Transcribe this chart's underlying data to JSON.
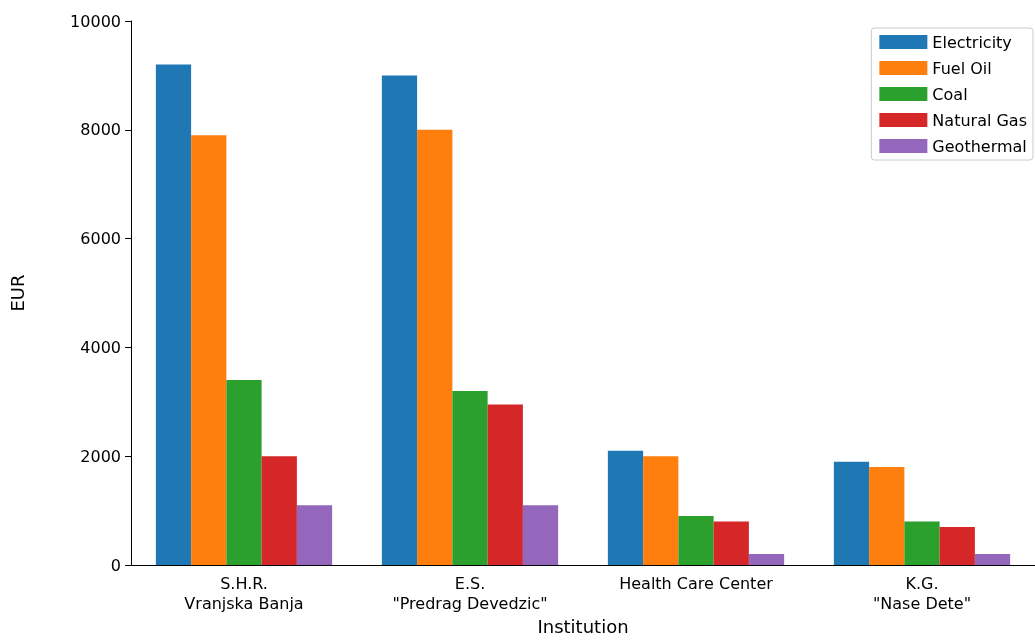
{
  "chart_data": {
    "type": "bar",
    "xlabel": "Institution",
    "ylabel": "EUR",
    "categories": [
      "S.H.R.\nVranjska Banja",
      "E.S.\n\"Predrag Devedzic\"",
      "Health Care Center",
      "K.G.\n\"Nase Dete\""
    ],
    "series": [
      {
        "name": "Electricity",
        "color": "#1f77b4",
        "values": [
          9200,
          9000,
          2100,
          1900
        ]
      },
      {
        "name": "Fuel Oil",
        "color": "#ff7f0e",
        "values": [
          7900,
          8000,
          2000,
          1800
        ]
      },
      {
        "name": "Coal",
        "color": "#2ca02c",
        "values": [
          3400,
          3200,
          900,
          800
        ]
      },
      {
        "name": "Natural Gas",
        "color": "#d62728",
        "values": [
          2000,
          2950,
          800,
          700
        ]
      },
      {
        "name": "Geothermal",
        "color": "#9467bd",
        "values": [
          1100,
          1100,
          200,
          200
        ]
      }
    ],
    "ylim": [
      0,
      10000
    ],
    "yticks": [
      0,
      2000,
      4000,
      6000,
      8000,
      10000
    ],
    "grid": false,
    "legend": "top right"
  }
}
